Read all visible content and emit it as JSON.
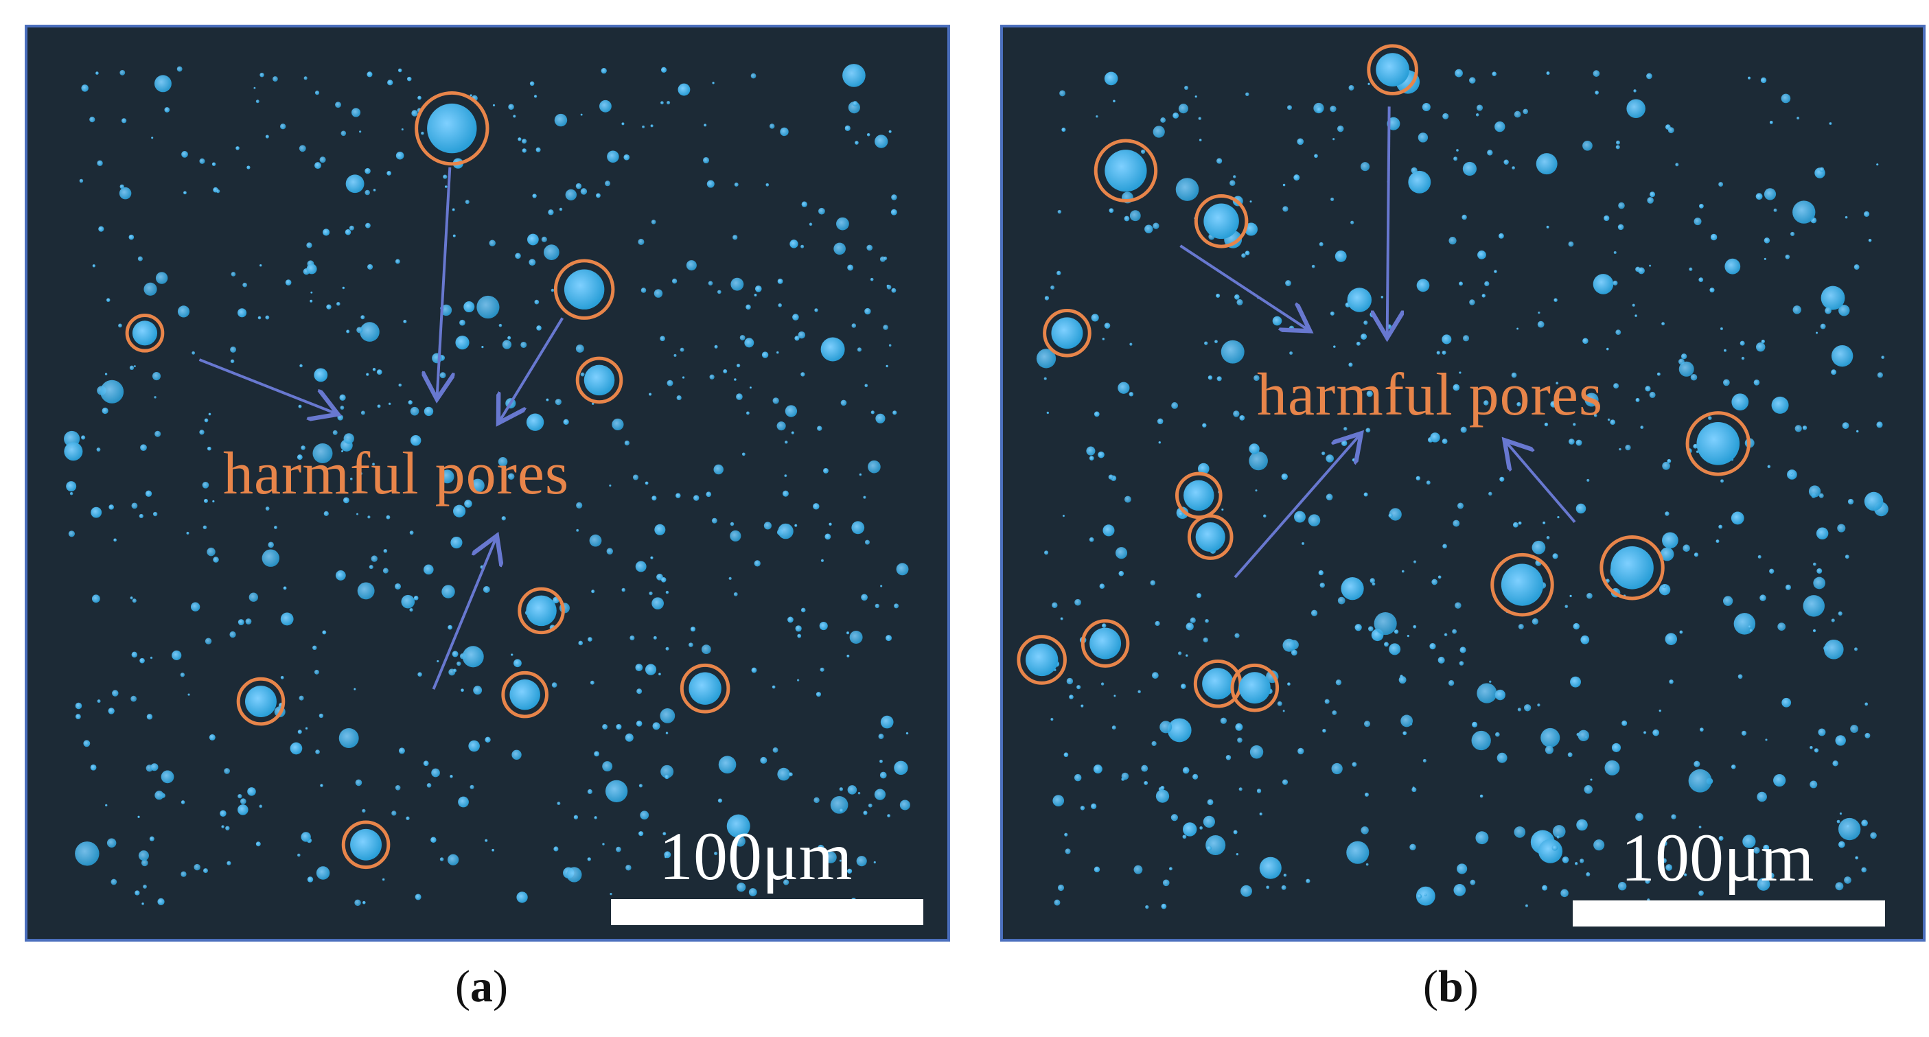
{
  "panels": [
    {
      "id": "a",
      "label": "harmful pores",
      "scale_label": "100μm",
      "caption_letter": "a"
    },
    {
      "id": "b",
      "label": "harmful pores",
      "scale_label": "100μm",
      "caption_letter": "b"
    }
  ],
  "colors": {
    "background": "#1c2a36",
    "pore": "#2a9fd8",
    "highlight_circle": "#e8854a",
    "arrow": "#6878d0",
    "frame": "#4b6fbd"
  }
}
